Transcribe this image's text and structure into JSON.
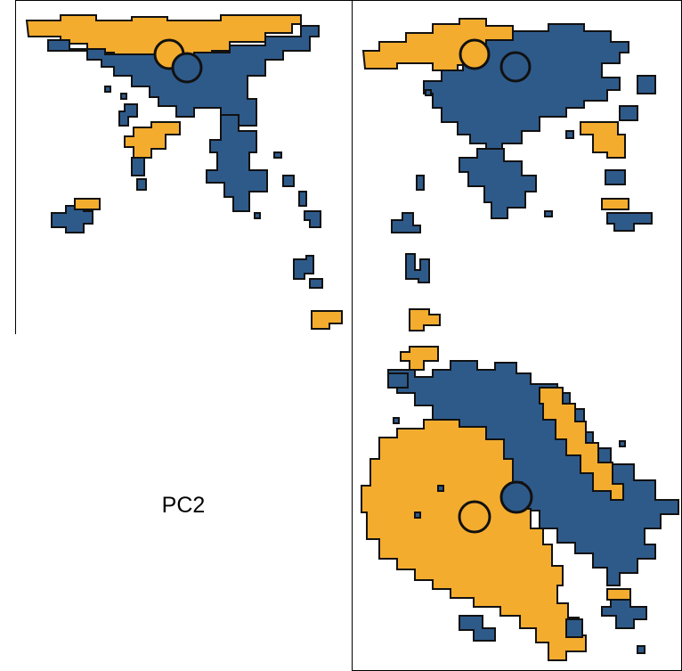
{
  "colors": {
    "orange": "#F4AC2E",
    "blue": "#2E5A8A",
    "stroke": "#111111"
  },
  "diagonal_label": "PC2",
  "chart_data": {
    "type": "scatter",
    "title": "",
    "legend": "none",
    "panels": [
      {
        "position": "top-left",
        "regions": [
          "orange",
          "blue"
        ],
        "centroids": [
          {
            "group": "orange"
          },
          {
            "group": "blue"
          }
        ]
      },
      {
        "position": "top-right",
        "regions": [
          "orange",
          "blue"
        ],
        "centroids": [
          {
            "group": "orange"
          },
          {
            "group": "blue"
          }
        ]
      },
      {
        "position": "bottom-left",
        "label": "PC2"
      },
      {
        "position": "bottom-right",
        "regions": [
          "orange",
          "blue"
        ],
        "centroids": [
          {
            "group": "orange"
          },
          {
            "group": "blue"
          }
        ]
      }
    ]
  }
}
